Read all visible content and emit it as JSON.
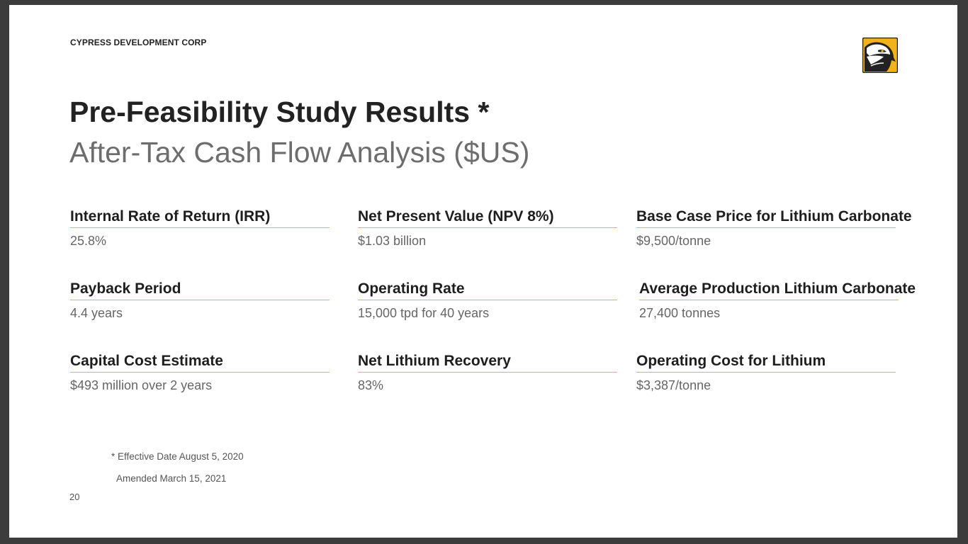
{
  "header": {
    "company": "CYPRESS DEVELOPMENT CORP",
    "logo_icon": "hawk-logo-icon"
  },
  "title": "Pre-Feasibility Study Results *",
  "subtitle": "After-Tax Cash Flow Analysis ($US)",
  "metrics": [
    {
      "label": "Internal Rate of Return (IRR)",
      "value": "25.8%"
    },
    {
      "label": "Net Present Value (NPV 8%)",
      "value": "$1.03 billion"
    },
    {
      "label": "Base Case Price for Lithium Carbonate",
      "value": "$9,500/tonne"
    },
    {
      "label": "Payback Period",
      "value": "4.4 years"
    },
    {
      "label": "Operating Rate",
      "value": "15,000 tpd for 40 years"
    },
    {
      "label": "Average Production Lithium Carbonate",
      "value": "27,400 tonnes"
    },
    {
      "label": "Capital Cost Estimate",
      "value": "$493 million over 2 years"
    },
    {
      "label": "Net Lithium Recovery",
      "value": "83%"
    },
    {
      "label": "Operating Cost for Lithium",
      "value": "$3,387/tonne"
    }
  ],
  "footnotes": {
    "effective_date": "* Effective Date August 5, 2020",
    "amended": "Amended March 15, 2021"
  },
  "page_number": "20",
  "colors": {
    "accent": "#f0b52a",
    "title": "#222222",
    "subtitle": "#6d6d6d",
    "value": "#666666"
  }
}
